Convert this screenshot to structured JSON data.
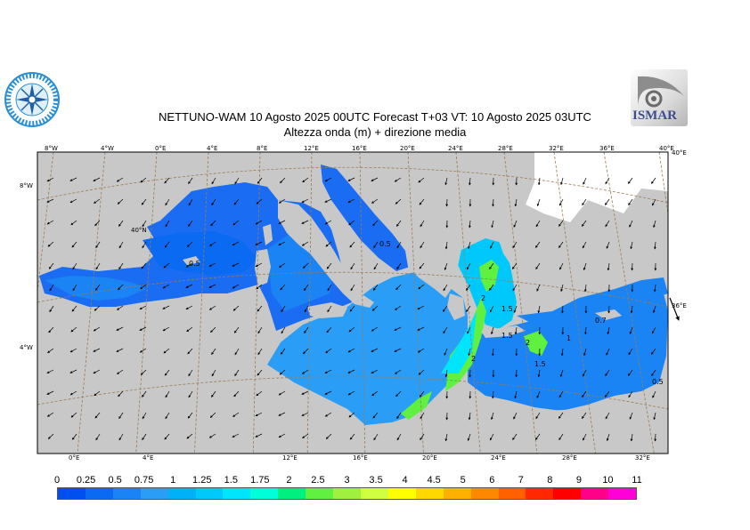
{
  "header": {
    "title_line1": "NETTUNO-WAM  10   Agosto  2025 00UTC Forecast T+03 VT: 10   Agosto  2025 03UTC",
    "title_line2": "Altezza onda (m) + direzione media",
    "logo_right_text": "ISMAR"
  },
  "map": {
    "top_lon_labels": [
      "8°W",
      "4°W",
      "0°E",
      "4°E",
      "8°E",
      "12°E",
      "16°E",
      "20°E",
      "24°E",
      "28°E",
      "32°E",
      "36°E",
      "40°E"
    ],
    "bottom_lon_labels": [
      "0°E",
      "4°E",
      "12°E",
      "16°E",
      "20°E",
      "24°E",
      "28°E",
      "32°E"
    ],
    "left_lat_labels": [
      "8°W",
      "4°W"
    ],
    "inner_labels": [
      "40°N"
    ],
    "right_labels": [
      "40°E",
      "36°E"
    ],
    "contour_labels": [
      "0.5",
      "0.5",
      "2",
      "2",
      "1.5",
      "1.5",
      "2",
      "1",
      "1.5",
      "0.7",
      "0.5"
    ],
    "colors": {
      "land": "#c8c8c8",
      "graticule": "#9b7b55",
      "arrow": "#000000"
    }
  },
  "legend": {
    "labels": [
      "0",
      "0.25",
      "0.5",
      "0.75",
      "1",
      "1.25",
      "1.5",
      "1.75",
      "2",
      "2.5",
      "3",
      "3.5",
      "4",
      "4.5",
      "5",
      "6",
      "7",
      "8",
      "9",
      "10",
      "11"
    ],
    "colors": [
      "#0050f0",
      "#0a6af2",
      "#1a84f4",
      "#2a9ef6",
      "#00b0f8",
      "#00c8fa",
      "#00e4fc",
      "#00ffd8",
      "#00f080",
      "#60f040",
      "#a0f040",
      "#d0ff40",
      "#ffff00",
      "#ffd800",
      "#ffb000",
      "#ff8800",
      "#ff6000",
      "#ff2800",
      "#ff0000",
      "#ff0088",
      "#ff00d8"
    ]
  }
}
